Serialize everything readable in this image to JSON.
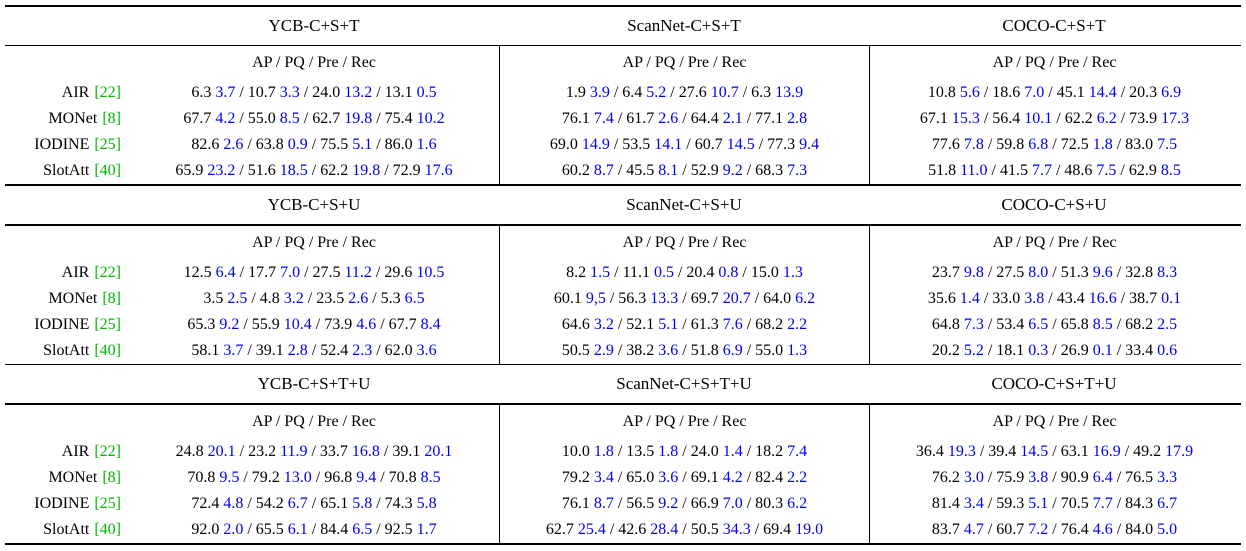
{
  "colors": {
    "text": "#000000",
    "std_value": "#0000ee",
    "citation": "#00b800",
    "rule": "#000000",
    "background": "#ffffff"
  },
  "metrics_header": "AP / PQ / Pre / Rec",
  "value_separator": "/",
  "methods": [
    {
      "name": "AIR",
      "cite": "[22]"
    },
    {
      "name": "MONet",
      "cite": "[8]"
    },
    {
      "name": "IODINE",
      "cite": "[25]"
    },
    {
      "name": "SlotAtt",
      "cite": "[40]"
    }
  ],
  "sections": [
    {
      "datasets": [
        "YCB-C+S+T",
        "ScanNet-C+S+T",
        "COCO-C+S+T"
      ],
      "rows": [
        [
          [
            [
              "6.3",
              "3.7"
            ],
            [
              "10.7",
              "3.3"
            ],
            [
              "24.0",
              "13.2"
            ],
            [
              "13.1",
              "0.5"
            ]
          ],
          [
            [
              "1.9",
              "3.9"
            ],
            [
              "6.4",
              "5.2"
            ],
            [
              "27.6",
              "10.7"
            ],
            [
              "6.3",
              "13.9"
            ]
          ],
          [
            [
              "10.8",
              "5.6"
            ],
            [
              "18.6",
              "7.0"
            ],
            [
              "45.1",
              "14.4"
            ],
            [
              "20.3",
              "6.9"
            ]
          ]
        ],
        [
          [
            [
              "67.7",
              "4.2"
            ],
            [
              "55.0",
              "8.5"
            ],
            [
              "62.7",
              "19.8"
            ],
            [
              "75.4",
              "10.2"
            ]
          ],
          [
            [
              "76.1",
              "7.4"
            ],
            [
              "61.7",
              "2.6"
            ],
            [
              "64.4",
              "2.1"
            ],
            [
              "77.1",
              "2.8"
            ]
          ],
          [
            [
              "67.1",
              "15.3"
            ],
            [
              "56.4",
              "10.1"
            ],
            [
              "62.2",
              "6.2"
            ],
            [
              "73.9",
              "17.3"
            ]
          ]
        ],
        [
          [
            [
              "82.6",
              "2.6"
            ],
            [
              "63.8",
              "0.9"
            ],
            [
              "75.5",
              "5.1"
            ],
            [
              "86.0",
              "1.6"
            ]
          ],
          [
            [
              "69.0",
              "14.9"
            ],
            [
              "53.5",
              "14.1"
            ],
            [
              "60.7",
              "14.5"
            ],
            [
              "77.3",
              "9.4"
            ]
          ],
          [
            [
              "77.6",
              "7.8"
            ],
            [
              "59.8",
              "6.8"
            ],
            [
              "72.5",
              "1.8"
            ],
            [
              "83.0",
              "7.5"
            ]
          ]
        ],
        [
          [
            [
              "65.9",
              "23.2"
            ],
            [
              "51.6",
              "18.5"
            ],
            [
              "62.2",
              "19.8"
            ],
            [
              "72.9",
              "17.6"
            ]
          ],
          [
            [
              "60.2",
              "8.7"
            ],
            [
              "45.5",
              "8.1"
            ],
            [
              "52.9",
              "9.2"
            ],
            [
              "68.3",
              "7.3"
            ]
          ],
          [
            [
              "51.8",
              "11.0"
            ],
            [
              "41.5",
              "7.7"
            ],
            [
              "48.6",
              "7.5"
            ],
            [
              "62.9",
              "8.5"
            ]
          ]
        ]
      ]
    },
    {
      "datasets": [
        "YCB-C+S+U",
        "ScanNet-C+S+U",
        "COCO-C+S+U"
      ],
      "rows": [
        [
          [
            [
              "12.5",
              "6.4"
            ],
            [
              "17.7",
              "7.0"
            ],
            [
              "27.5",
              "11.2"
            ],
            [
              "29.6",
              "10.5"
            ]
          ],
          [
            [
              "8.2",
              "1.5"
            ],
            [
              "11.1",
              "0.5"
            ],
            [
              "20.4",
              "0.8"
            ],
            [
              "15.0",
              "1.3"
            ]
          ],
          [
            [
              "23.7",
              "9.8"
            ],
            [
              "27.5",
              "8.0"
            ],
            [
              "51.3",
              "9.6"
            ],
            [
              "32.8",
              "8.3"
            ]
          ]
        ],
        [
          [
            [
              "3.5",
              "2.5"
            ],
            [
              "4.8",
              "3.2"
            ],
            [
              "23.5",
              "2.6"
            ],
            [
              "5.3",
              "6.5"
            ]
          ],
          [
            [
              "60.1",
              "9,5"
            ],
            [
              "56.3",
              "13.3"
            ],
            [
              "69.7",
              "20.7"
            ],
            [
              "64.0",
              "6.2"
            ]
          ],
          [
            [
              "35.6",
              "1.4"
            ],
            [
              "33.0",
              "3.8"
            ],
            [
              "43.4",
              "16.6"
            ],
            [
              "38.7",
              "0.1"
            ]
          ]
        ],
        [
          [
            [
              "65.3",
              "9.2"
            ],
            [
              "55.9",
              "10.4"
            ],
            [
              "73.9",
              "4.6"
            ],
            [
              "67.7",
              "8.4"
            ]
          ],
          [
            [
              "64.6",
              "3.2"
            ],
            [
              "52.1",
              "5.1"
            ],
            [
              "61.3",
              "7.6"
            ],
            [
              "68.2",
              "2.2"
            ]
          ],
          [
            [
              "64.8",
              "7.3"
            ],
            [
              "53.4",
              "6.5"
            ],
            [
              "65.8",
              "8.5"
            ],
            [
              "68.2",
              "2.5"
            ]
          ]
        ],
        [
          [
            [
              "58.1",
              "3.7"
            ],
            [
              "39.1",
              "2.8"
            ],
            [
              "52.4",
              "2.3"
            ],
            [
              "62.0",
              "3.6"
            ]
          ],
          [
            [
              "50.5",
              "2.9"
            ],
            [
              "38.2",
              "3.6"
            ],
            [
              "51.8",
              "6.9"
            ],
            [
              "55.0",
              "1.3"
            ]
          ],
          [
            [
              "20.2",
              "5.2"
            ],
            [
              "18.1",
              "0.3"
            ],
            [
              "26.9",
              "0.1"
            ],
            [
              "33.4",
              "0.6"
            ]
          ]
        ]
      ]
    },
    {
      "datasets": [
        "YCB-C+S+T+U",
        "ScanNet-C+S+T+U",
        "COCO-C+S+T+U"
      ],
      "rows": [
        [
          [
            [
              "24.8",
              "20.1"
            ],
            [
              "23.2",
              "11.9"
            ],
            [
              "33.7",
              "16.8"
            ],
            [
              "39.1",
              "20.1"
            ]
          ],
          [
            [
              "10.0",
              "1.8"
            ],
            [
              "13.5",
              "1.8"
            ],
            [
              "24.0",
              "1.4"
            ],
            [
              "18.2",
              "7.4"
            ]
          ],
          [
            [
              "36.4",
              "19.3"
            ],
            [
              "39.4",
              "14.5"
            ],
            [
              "63.1",
              "16.9"
            ],
            [
              "49.2",
              "17.9"
            ]
          ]
        ],
        [
          [
            [
              "70.8",
              "9.5"
            ],
            [
              "79.2",
              "13.0"
            ],
            [
              "96.8",
              "9.4"
            ],
            [
              "70.8",
              "8.5"
            ]
          ],
          [
            [
              "79.2",
              "3.4"
            ],
            [
              "65.0",
              "3.6"
            ],
            [
              "69.1",
              "4.2"
            ],
            [
              "82.4",
              "2.2"
            ]
          ],
          [
            [
              "76.2",
              "3.0"
            ],
            [
              "75.9",
              "3.8"
            ],
            [
              "90.9",
              "6.4"
            ],
            [
              "76.5",
              "3.3"
            ]
          ]
        ],
        [
          [
            [
              "72.4",
              "4.8"
            ],
            [
              "54.2",
              "6.7"
            ],
            [
              "65.1",
              "5.8"
            ],
            [
              "74.3",
              "5.8"
            ]
          ],
          [
            [
              "76.1",
              "8.7"
            ],
            [
              "56.5",
              "9.2"
            ],
            [
              "66.9",
              "7.0"
            ],
            [
              "80.3",
              "6.2"
            ]
          ],
          [
            [
              "81.4",
              "3.4"
            ],
            [
              "59.3",
              "5.1"
            ],
            [
              "70.5",
              "7.7"
            ],
            [
              "84.3",
              "6.7"
            ]
          ]
        ],
        [
          [
            [
              "92.0",
              "2.0"
            ],
            [
              "65.5",
              "6.1"
            ],
            [
              "84.4",
              "6.5"
            ],
            [
              "92.5",
              "1.7"
            ]
          ],
          [
            [
              "62.7",
              "25.4"
            ],
            [
              "42.6",
              "28.4"
            ],
            [
              "50.5",
              "34.3"
            ],
            [
              "69.4",
              "19.0"
            ]
          ],
          [
            [
              "83.7",
              "4.7"
            ],
            [
              "60.7",
              "7.2"
            ],
            [
              "76.4",
              "4.6"
            ],
            [
              "84.0",
              "5.0"
            ]
          ]
        ]
      ]
    }
  ]
}
